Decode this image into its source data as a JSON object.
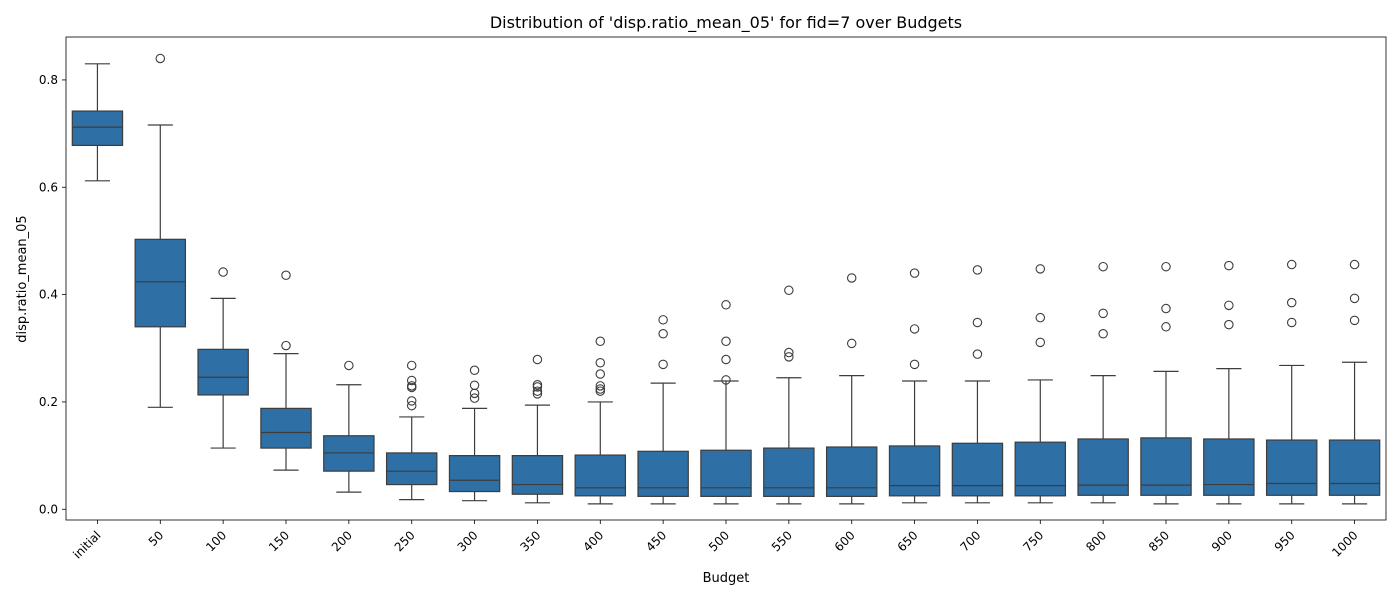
{
  "chart_data": {
    "type": "box",
    "title": "Distribution of 'disp.ratio_mean_05' for fid=7 over Budgets",
    "xlabel": "Budget",
    "ylabel": "disp.ratio_mean_05",
    "ylim": [
      -0.02,
      0.88
    ],
    "yticks": [
      "0.0",
      "0.2",
      "0.4",
      "0.6",
      "0.8"
    ],
    "box_color": "#2e6fa5",
    "edge_color": "#3d3d3d",
    "categories": [
      "initial",
      "50",
      "100",
      "150",
      "200",
      "250",
      "300",
      "350",
      "400",
      "450",
      "500",
      "550",
      "600",
      "650",
      "700",
      "750",
      "800",
      "850",
      "900",
      "950",
      "1000"
    ],
    "boxes": [
      {
        "whislo": 0.612,
        "q1": 0.678,
        "med": 0.712,
        "q3": 0.742,
        "whishi": 0.83,
        "fliers": []
      },
      {
        "whislo": 0.19,
        "q1": 0.34,
        "med": 0.424,
        "q3": 0.503,
        "whishi": 0.716,
        "fliers": [
          0.84
        ]
      },
      {
        "whislo": 0.114,
        "q1": 0.213,
        "med": 0.246,
        "q3": 0.298,
        "whishi": 0.393,
        "fliers": [
          0.442
        ]
      },
      {
        "whislo": 0.073,
        "q1": 0.114,
        "med": 0.143,
        "q3": 0.188,
        "whishi": 0.29,
        "fliers": [
          0.305,
          0.436
        ]
      },
      {
        "whislo": 0.032,
        "q1": 0.071,
        "med": 0.105,
        "q3": 0.137,
        "whishi": 0.232,
        "fliers": [
          0.268
        ]
      },
      {
        "whislo": 0.018,
        "q1": 0.046,
        "med": 0.071,
        "q3": 0.105,
        "whishi": 0.172,
        "fliers": [
          0.193,
          0.202,
          0.227,
          0.23,
          0.24,
          0.268
        ]
      },
      {
        "whislo": 0.016,
        "q1": 0.033,
        "med": 0.054,
        "q3": 0.1,
        "whishi": 0.188,
        "fliers": [
          0.207,
          0.216,
          0.231,
          0.259
        ]
      },
      {
        "whislo": 0.012,
        "q1": 0.028,
        "med": 0.046,
        "q3": 0.1,
        "whishi": 0.194,
        "fliers": [
          0.215,
          0.22,
          0.228,
          0.232,
          0.279
        ]
      },
      {
        "whislo": 0.01,
        "q1": 0.025,
        "med": 0.04,
        "q3": 0.101,
        "whishi": 0.2,
        "fliers": [
          0.22,
          0.224,
          0.23,
          0.252,
          0.273,
          0.313
        ]
      },
      {
        "whislo": 0.01,
        "q1": 0.024,
        "med": 0.04,
        "q3": 0.108,
        "whishi": 0.235,
        "fliers": [
          0.27,
          0.327,
          0.353
        ]
      },
      {
        "whislo": 0.01,
        "q1": 0.024,
        "med": 0.04,
        "q3": 0.11,
        "whishi": 0.239,
        "fliers": [
          0.241,
          0.279,
          0.313,
          0.381
        ]
      },
      {
        "whislo": 0.01,
        "q1": 0.024,
        "med": 0.04,
        "q3": 0.114,
        "whishi": 0.245,
        "fliers": [
          0.284,
          0.292,
          0.408
        ]
      },
      {
        "whislo": 0.01,
        "q1": 0.024,
        "med": 0.04,
        "q3": 0.116,
        "whishi": 0.249,
        "fliers": [
          0.309,
          0.431
        ]
      },
      {
        "whislo": 0.012,
        "q1": 0.025,
        "med": 0.044,
        "q3": 0.118,
        "whishi": 0.239,
        "fliers": [
          0.27,
          0.336,
          0.44
        ]
      },
      {
        "whislo": 0.012,
        "q1": 0.025,
        "med": 0.044,
        "q3": 0.123,
        "whishi": 0.239,
        "fliers": [
          0.289,
          0.348,
          0.446
        ]
      },
      {
        "whislo": 0.012,
        "q1": 0.025,
        "med": 0.044,
        "q3": 0.125,
        "whishi": 0.241,
        "fliers": [
          0.311,
          0.357,
          0.448
        ]
      },
      {
        "whislo": 0.012,
        "q1": 0.026,
        "med": 0.045,
        "q3": 0.131,
        "whishi": 0.249,
        "fliers": [
          0.327,
          0.365,
          0.452
        ]
      },
      {
        "whislo": 0.01,
        "q1": 0.026,
        "med": 0.045,
        "q3": 0.133,
        "whishi": 0.257,
        "fliers": [
          0.34,
          0.374,
          0.452
        ]
      },
      {
        "whislo": 0.01,
        "q1": 0.026,
        "med": 0.046,
        "q3": 0.131,
        "whishi": 0.262,
        "fliers": [
          0.344,
          0.38,
          0.454
        ]
      },
      {
        "whislo": 0.01,
        "q1": 0.026,
        "med": 0.048,
        "q3": 0.129,
        "whishi": 0.268,
        "fliers": [
          0.348,
          0.385,
          0.456
        ]
      },
      {
        "whislo": 0.01,
        "q1": 0.026,
        "med": 0.048,
        "q3": 0.129,
        "whishi": 0.274,
        "fliers": [
          0.352,
          0.393,
          0.456
        ]
      }
    ]
  }
}
